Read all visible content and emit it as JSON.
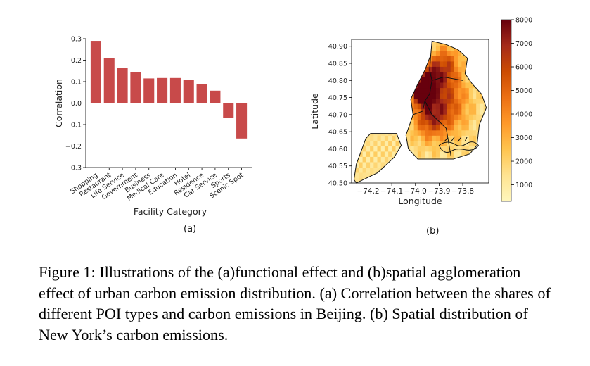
{
  "chart_data": [
    {
      "type": "bar",
      "categories": [
        "Shopping",
        "Restaurant",
        "Life Service",
        "Government",
        "Business",
        "Medical Care",
        "Education",
        "Hotel",
        "Residence",
        "Car Service",
        "Sports",
        "Scenic Spot"
      ],
      "values": [
        0.29,
        0.21,
        0.165,
        0.145,
        0.115,
        0.117,
        0.117,
        0.107,
        0.087,
        0.058,
        -0.068,
        -0.165
      ],
      "xlabel": "Facility Category",
      "ylabel": "Correlation",
      "ylim": [
        -0.3,
        0.3
      ],
      "yticks": [
        "0.3",
        "0.2",
        "0.1",
        "0.0",
        "−0.1",
        "−0.2",
        "−0.3"
      ],
      "bar_color": "#c84a4a",
      "grid": false
    },
    {
      "type": "heatmap",
      "xlabel": "Longitude",
      "ylabel": "Latitude",
      "xticks": [
        "−74.2",
        "−74.1",
        "−74.0",
        "−73.9",
        "−73.8"
      ],
      "yticks": [
        "40.90",
        "40.85",
        "40.80",
        "40.75",
        "40.70",
        "40.65",
        "40.60",
        "40.55",
        "40.50"
      ],
      "xlim": [
        -74.27,
        -73.69
      ],
      "ylim": [
        40.5,
        40.92
      ],
      "colorbar_ticks": [
        "8000",
        "7000",
        "6000",
        "5000",
        "4000",
        "3000",
        "2000",
        "1000"
      ],
      "colorbar_range": [
        300,
        8000
      ],
      "colormap": [
        "#fff7bc",
        "#fee391",
        "#fec44f",
        "#fe9929",
        "#ec7014",
        "#cc4c02",
        "#a52a1a",
        "#67000d"
      ]
    }
  ],
  "subfigure_labels": {
    "a": "(a)",
    "b": "(b)"
  },
  "caption": "Figure 1: Illustrations of the (a)functional effect and (b)spatial agglomeration effect of urban carbon emission distribution. (a) Correlation between the shares of different POI types and carbon emissions in Beijing. (b) Spatial distribution of New York’s carbon emissions."
}
